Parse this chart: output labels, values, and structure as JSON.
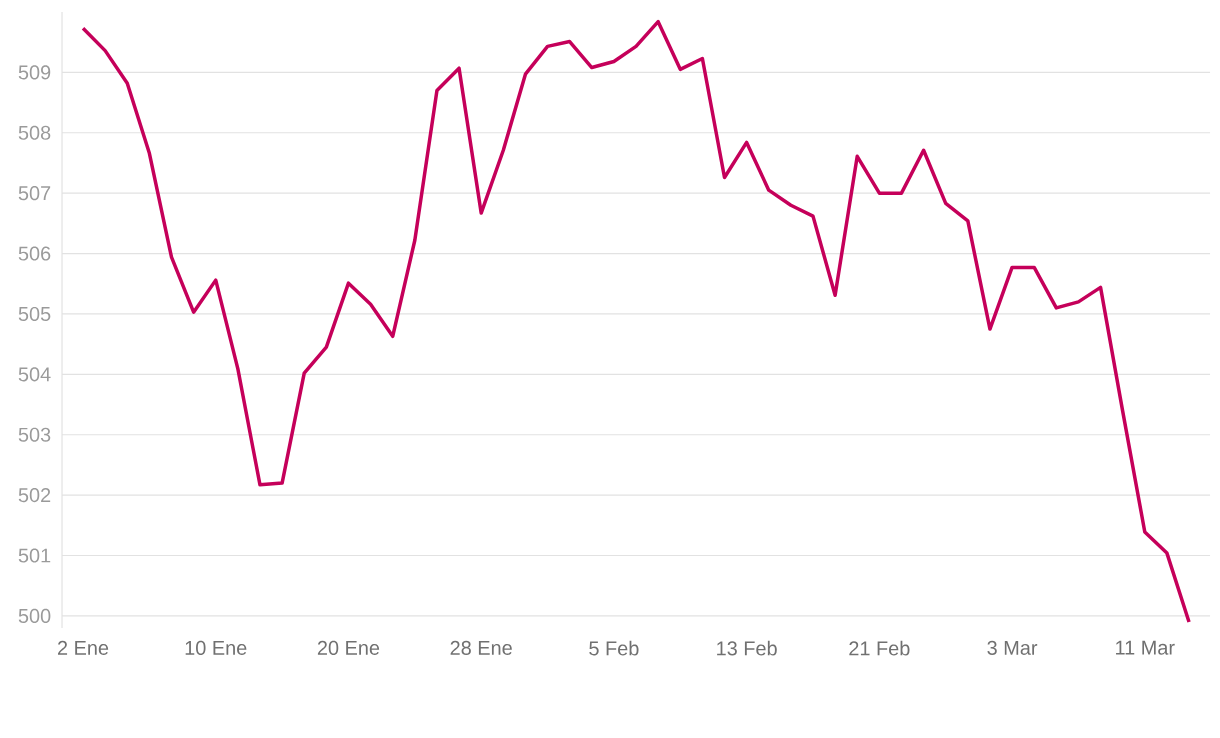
{
  "chart_data": {
    "type": "line",
    "categories": [
      "2 Ene",
      null,
      null,
      null,
      null,
      null,
      "10 Ene",
      null,
      null,
      null,
      null,
      null,
      "20 Ene",
      null,
      null,
      null,
      null,
      null,
      "28 Ene",
      null,
      null,
      null,
      null,
      null,
      "5 Feb",
      null,
      null,
      null,
      null,
      null,
      "13 Feb",
      null,
      null,
      null,
      null,
      null,
      "21 Feb",
      null,
      null,
      null,
      null,
      null,
      "3 Mar",
      null,
      null,
      null,
      null,
      null,
      "11 Mar",
      null,
      null
    ],
    "values": [
      509.73,
      509.36,
      508.82,
      507.66,
      505.94,
      505.03,
      505.56,
      504.09,
      502.17,
      502.2,
      504.02,
      504.45,
      505.51,
      505.16,
      504.63,
      506.22,
      508.7,
      509.07,
      506.67,
      507.71,
      508.97,
      509.43,
      509.51,
      509.08,
      509.18,
      509.43,
      509.84,
      509.05,
      509.23,
      507.26,
      507.84,
      507.05,
      506.8,
      506.62,
      505.31,
      507.61,
      507.0,
      507.0,
      507.71,
      506.83,
      506.54,
      504.75,
      505.77,
      505.77,
      505.1,
      505.2,
      505.44,
      503.39,
      501.39,
      501.04,
      499.9
    ],
    "color": "#c5005a",
    "ylim": [
      499.8,
      510
    ],
    "yticks": [
      500,
      501,
      502,
      503,
      504,
      505,
      506,
      507,
      508,
      509
    ],
    "grid": "y",
    "marker": "none",
    "line_style": "solid"
  }
}
